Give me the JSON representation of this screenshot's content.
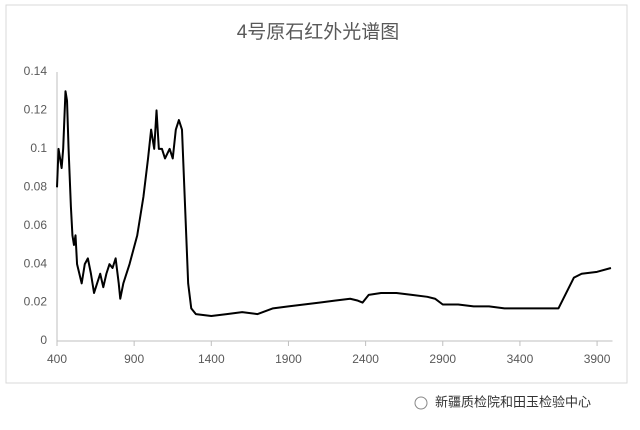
{
  "chart_data": {
    "type": "line",
    "title": "4号原石红外光谱图",
    "x": [
      400,
      410,
      420,
      430,
      440,
      455,
      465,
      475,
      490,
      500,
      510,
      520,
      530,
      545,
      560,
      580,
      600,
      620,
      640,
      660,
      680,
      700,
      720,
      740,
      760,
      780,
      800,
      810,
      830,
      870,
      920,
      960,
      990,
      1010,
      1030,
      1045,
      1060,
      1080,
      1100,
      1130,
      1150,
      1170,
      1190,
      1210,
      1230,
      1250,
      1270,
      1300,
      1400,
      1500,
      1600,
      1700,
      1800,
      1900,
      2000,
      2100,
      2200,
      2300,
      2350,
      2380,
      2420,
      2500,
      2600,
      2700,
      2800,
      2850,
      2900,
      3000,
      3100,
      3200,
      3300,
      3400,
      3500,
      3600,
      3650,
      3700,
      3750,
      3800,
      3900,
      3990
    ],
    "series": [
      {
        "color": "#000000",
        "values": [
          0.08,
          0.1,
          0.095,
          0.09,
          0.1,
          0.13,
          0.125,
          0.1,
          0.07,
          0.055,
          0.05,
          0.055,
          0.04,
          0.035,
          0.03,
          0.04,
          0.043,
          0.035,
          0.025,
          0.03,
          0.035,
          0.028,
          0.035,
          0.04,
          0.038,
          0.043,
          0.03,
          0.022,
          0.03,
          0.04,
          0.055,
          0.075,
          0.095,
          0.11,
          0.1,
          0.12,
          0.1,
          0.1,
          0.095,
          0.1,
          0.095,
          0.11,
          0.115,
          0.11,
          0.07,
          0.03,
          0.017,
          0.014,
          0.013,
          0.014,
          0.015,
          0.014,
          0.017,
          0.018,
          0.019,
          0.02,
          0.021,
          0.022,
          0.021,
          0.02,
          0.024,
          0.025,
          0.025,
          0.024,
          0.023,
          0.022,
          0.019,
          0.019,
          0.018,
          0.018,
          0.017,
          0.017,
          0.017,
          0.017,
          0.017,
          0.025,
          0.033,
          0.035,
          0.036,
          0.038
        ]
      }
    ],
    "xlim": [
      400,
      4000
    ],
    "xticks": [
      400,
      900,
      1400,
      1900,
      2400,
      2900,
      3400,
      3900
    ],
    "ylim": [
      0,
      0.14
    ],
    "yticks": [
      0,
      0.02,
      0.04,
      0.06,
      0.08,
      0.1,
      0.12,
      0.14
    ],
    "watermark": "新疆质检院和田玉检验中心"
  }
}
